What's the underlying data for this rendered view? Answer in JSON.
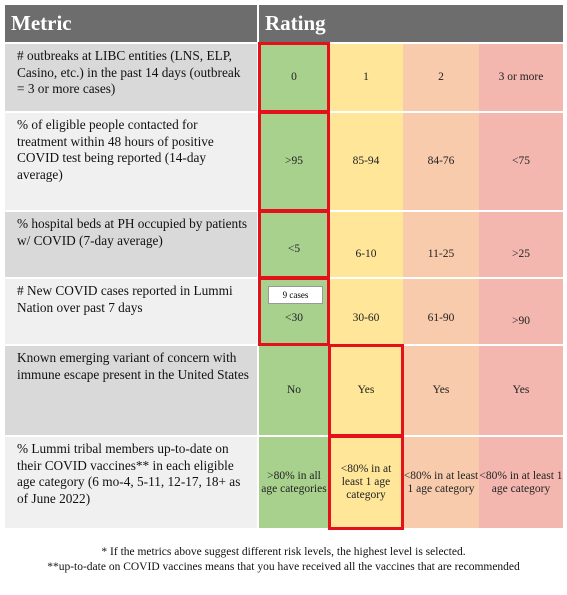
{
  "header": {
    "metric": "Metric",
    "rating": "Rating"
  },
  "rows": [
    {
      "metric": "# outbreaks at LIBC entities (LNS, ELP, Casino, etc.) in the past 14 days (outbreak = 3 or more cases)",
      "values": [
        "0",
        "1",
        "2",
        "3 or more"
      ]
    },
    {
      "metric": "% of eligible people contacted for treatment within 48 hours of positive COVID test being reported (14-day average)",
      "values": [
        ">95",
        "85-94",
        "84-76",
        "<75"
      ]
    },
    {
      "metric": "% hospital beds at PH occupied by patients w/ COVID (7-day average)",
      "values": [
        "<5",
        "6-10",
        "11-25",
        ">25"
      ]
    },
    {
      "metric": "# New COVID cases reported in Lummi Nation over past 7 days",
      "values": [
        "<30",
        "30-60",
        "61-90",
        ">90"
      ],
      "annotation": "9 cases"
    },
    {
      "metric": "Known emerging variant of concern with immune escape present in the United States",
      "values": [
        "No",
        "Yes",
        "Yes",
        "Yes"
      ]
    },
    {
      "metric": "% Lummi tribal members up-to-date on their COVID vaccines** in each eligible age category (6 mo-4, 5-11, 12-17, 18+ as of June 2022)",
      "values": [
        ">80% in all age categories",
        "<80% in at least 1 age category",
        "<80% in at least 1 age category",
        "<80% in at least 1 age category"
      ]
    }
  ],
  "footnotes": [
    "* If the metrics above suggest different risk levels, the highest level is selected.",
    "**up-to-date on COVID vaccines means that you have received all the vaccines that are recommended"
  ],
  "colors": {
    "green": "#a9d18e",
    "yellow": "#ffe699",
    "orange": "#f8cbad",
    "pink": "#f4b7b0",
    "highlight": "#e3111b"
  }
}
